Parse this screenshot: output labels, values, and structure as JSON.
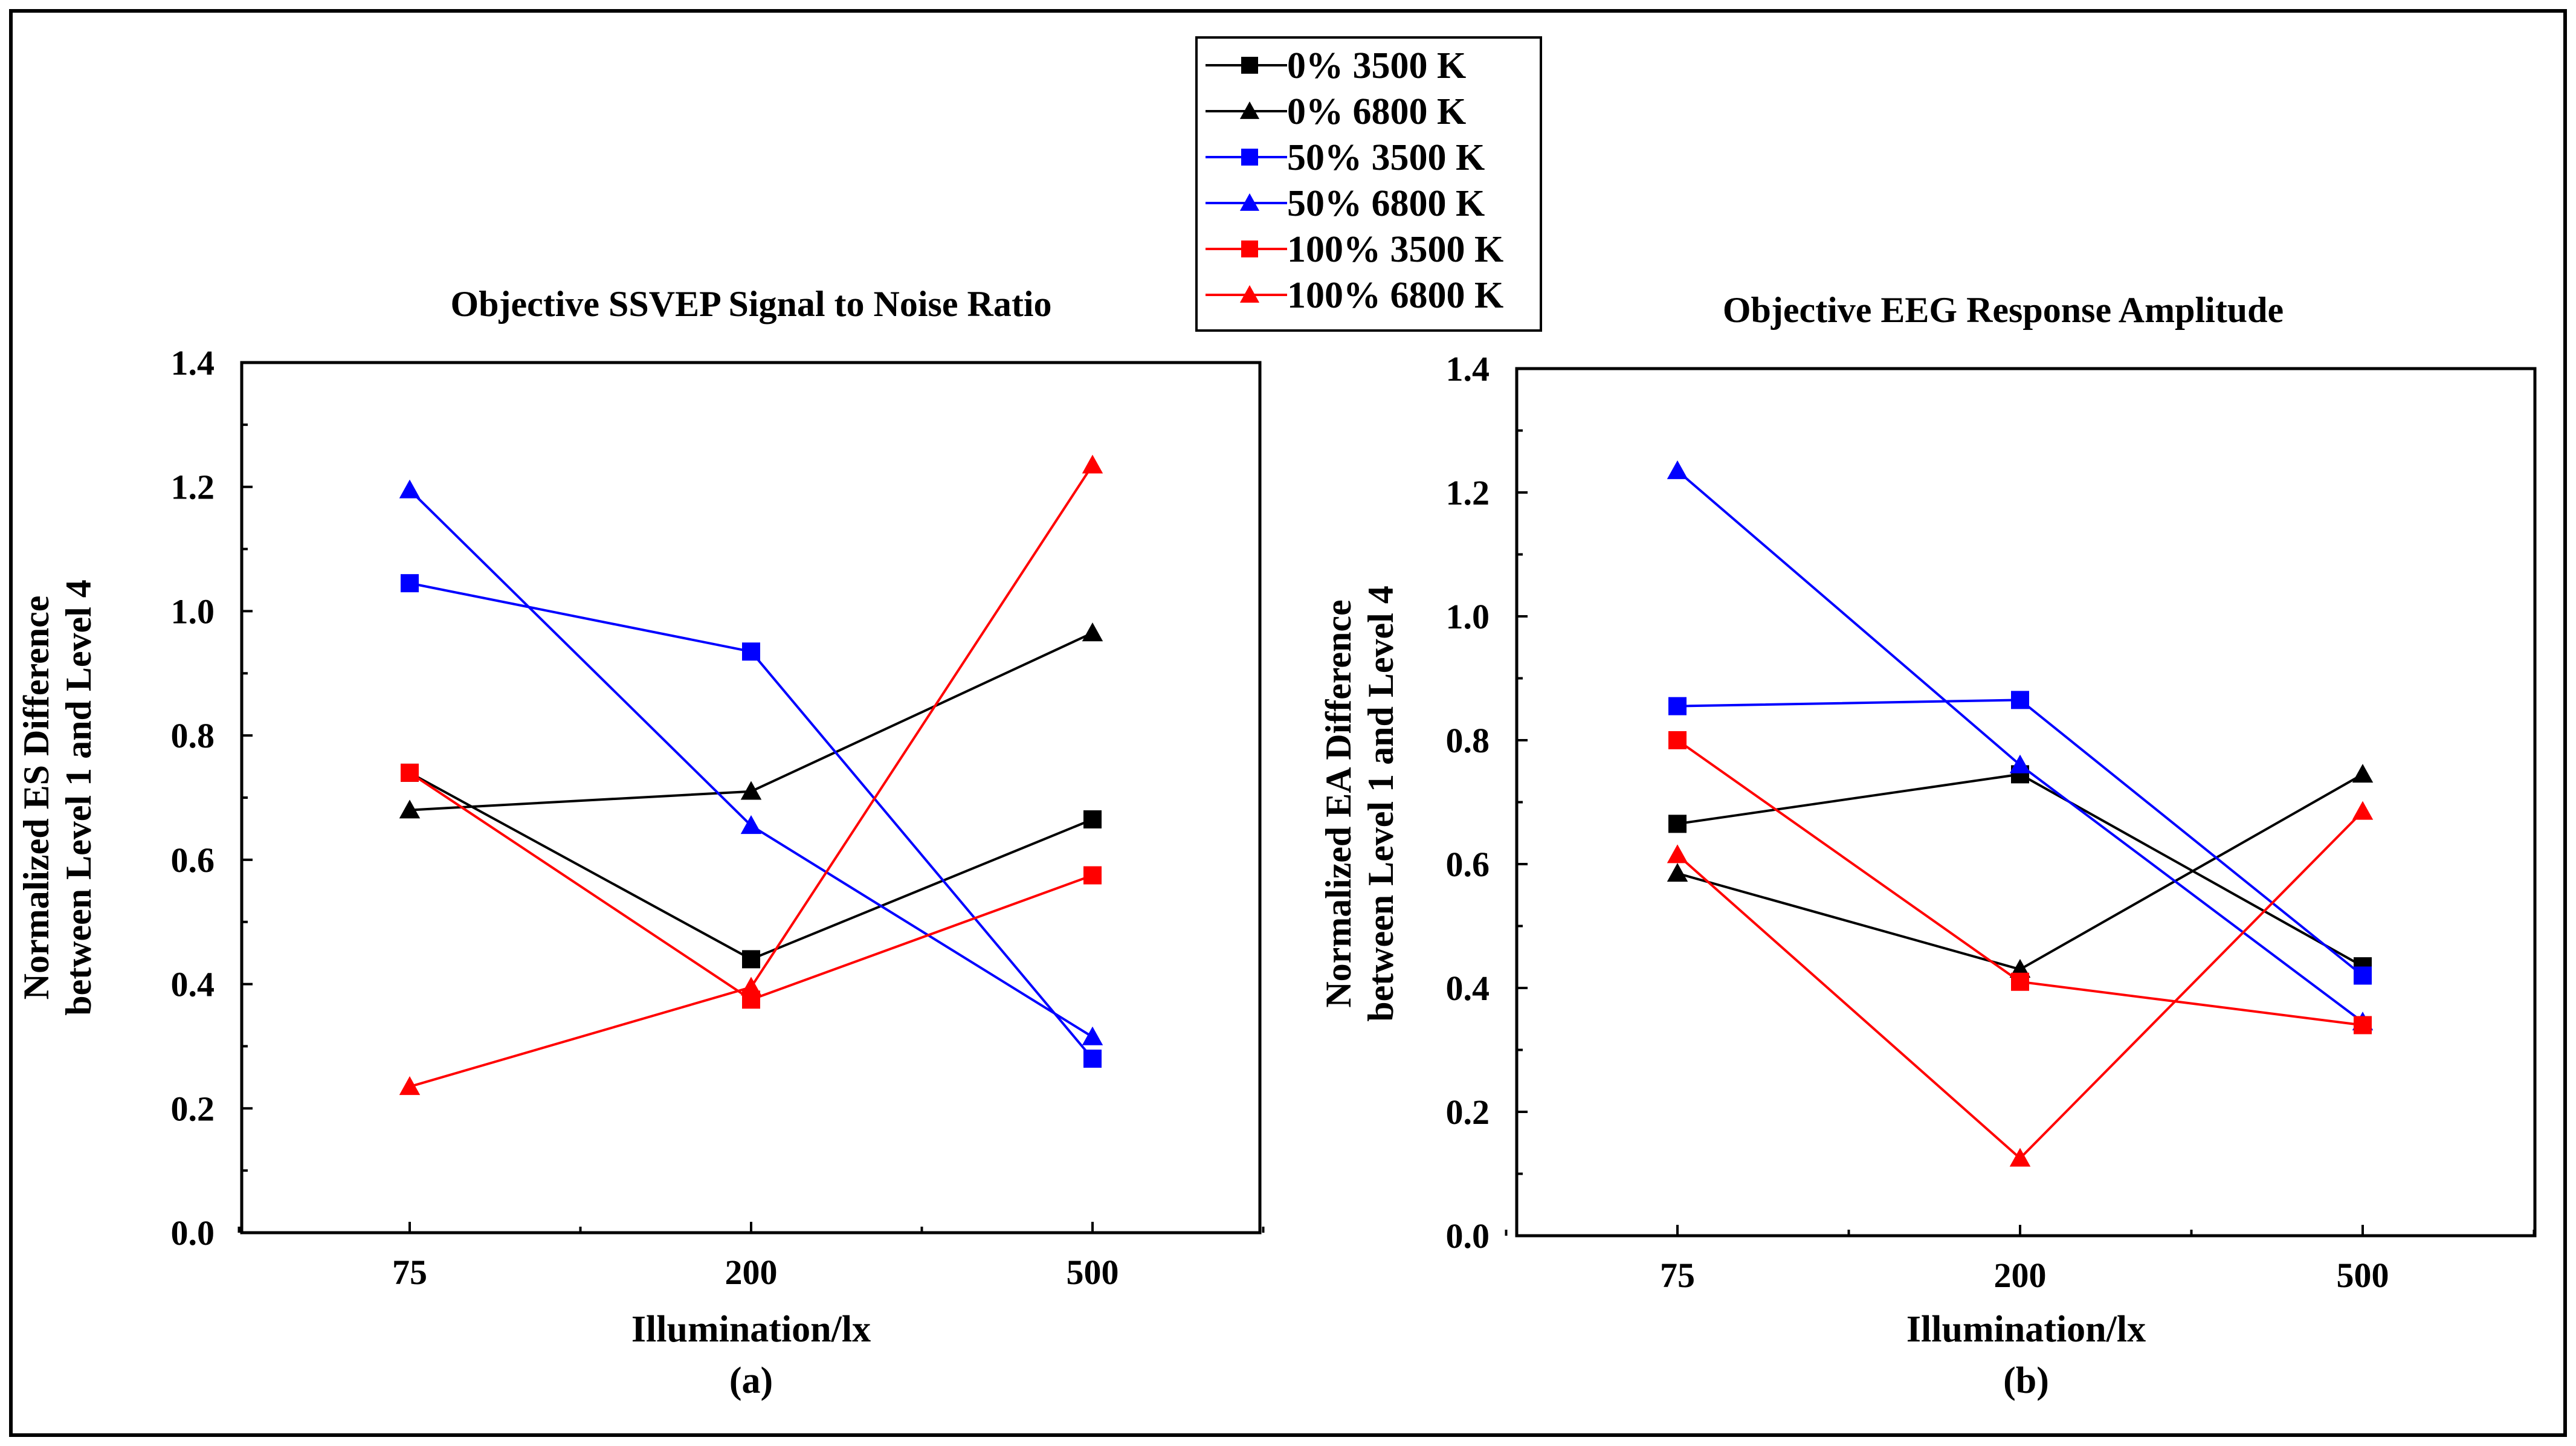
{
  "legend": {
    "entries": [
      {
        "label": "0% 3500 K",
        "color": "#000000",
        "marker": "square"
      },
      {
        "label": "0% 6800 K",
        "color": "#000000",
        "marker": "triangle"
      },
      {
        "label": "50% 3500 K",
        "color": "#0000ff",
        "marker": "square"
      },
      {
        "label": "50% 6800 K",
        "color": "#0000ff",
        "marker": "triangle"
      },
      {
        "label": "100% 3500 K",
        "color": "#ff0000",
        "marker": "square"
      },
      {
        "label": "100% 6800 K",
        "color": "#ff0000",
        "marker": "triangle"
      }
    ]
  },
  "chart_data": [
    {
      "type": "line",
      "title": "Objective SSVEP Signal to Noise Ratio",
      "xlabel": "Illumination/lx",
      "ylabel": [
        "Normalized ES Difference",
        "between Level 1 and Level 4"
      ],
      "caption": "(a)",
      "categories": [
        "75",
        "200",
        "500"
      ],
      "ylim": [
        0,
        1.4
      ],
      "yticks": [
        "0.0",
        "0.2",
        "0.4",
        "0.6",
        "0.8",
        "1.0",
        "1.2",
        "1.4"
      ],
      "series": [
        {
          "name": "0% 3500 K",
          "values": [
            0.74,
            0.44,
            0.665
          ]
        },
        {
          "name": "0% 6800 K",
          "values": [
            0.68,
            0.71,
            0.965
          ]
        },
        {
          "name": "50% 3500 K",
          "values": [
            1.045,
            0.935,
            0.28
          ]
        },
        {
          "name": "50% 6800 K",
          "values": [
            1.195,
            0.655,
            0.315
          ]
        },
        {
          "name": "100% 3500 K",
          "values": [
            0.74,
            0.375,
            0.575
          ]
        },
        {
          "name": "100% 6800 K",
          "values": [
            0.235,
            0.395,
            1.235
          ]
        }
      ]
    },
    {
      "type": "line",
      "title": "Objective EEG Response Amplitude",
      "xlabel": "Illumination/lx",
      "ylabel": [
        "Normalized EA Difference",
        "between Level 1 and Level 4"
      ],
      "caption": "(b)",
      "categories": [
        "75",
        "200",
        "500"
      ],
      "ylim": [
        0,
        1.4
      ],
      "yticks": [
        "0.0",
        "0.2",
        "0.4",
        "0.6",
        "0.8",
        "1.0",
        "1.2",
        "1.4"
      ],
      "series": [
        {
          "name": "0% 3500 K",
          "values": [
            0.665,
            0.745,
            0.435
          ]
        },
        {
          "name": "0% 6800 K",
          "values": [
            0.585,
            0.43,
            0.745
          ]
        },
        {
          "name": "50% 3500 K",
          "values": [
            0.855,
            0.865,
            0.42
          ]
        },
        {
          "name": "50% 6800 K",
          "values": [
            1.235,
            0.76,
            0.345
          ]
        },
        {
          "name": "100% 3500 K",
          "values": [
            0.8,
            0.41,
            0.34
          ]
        },
        {
          "name": "100% 6800 K",
          "values": [
            0.615,
            0.125,
            0.685
          ]
        }
      ]
    }
  ]
}
